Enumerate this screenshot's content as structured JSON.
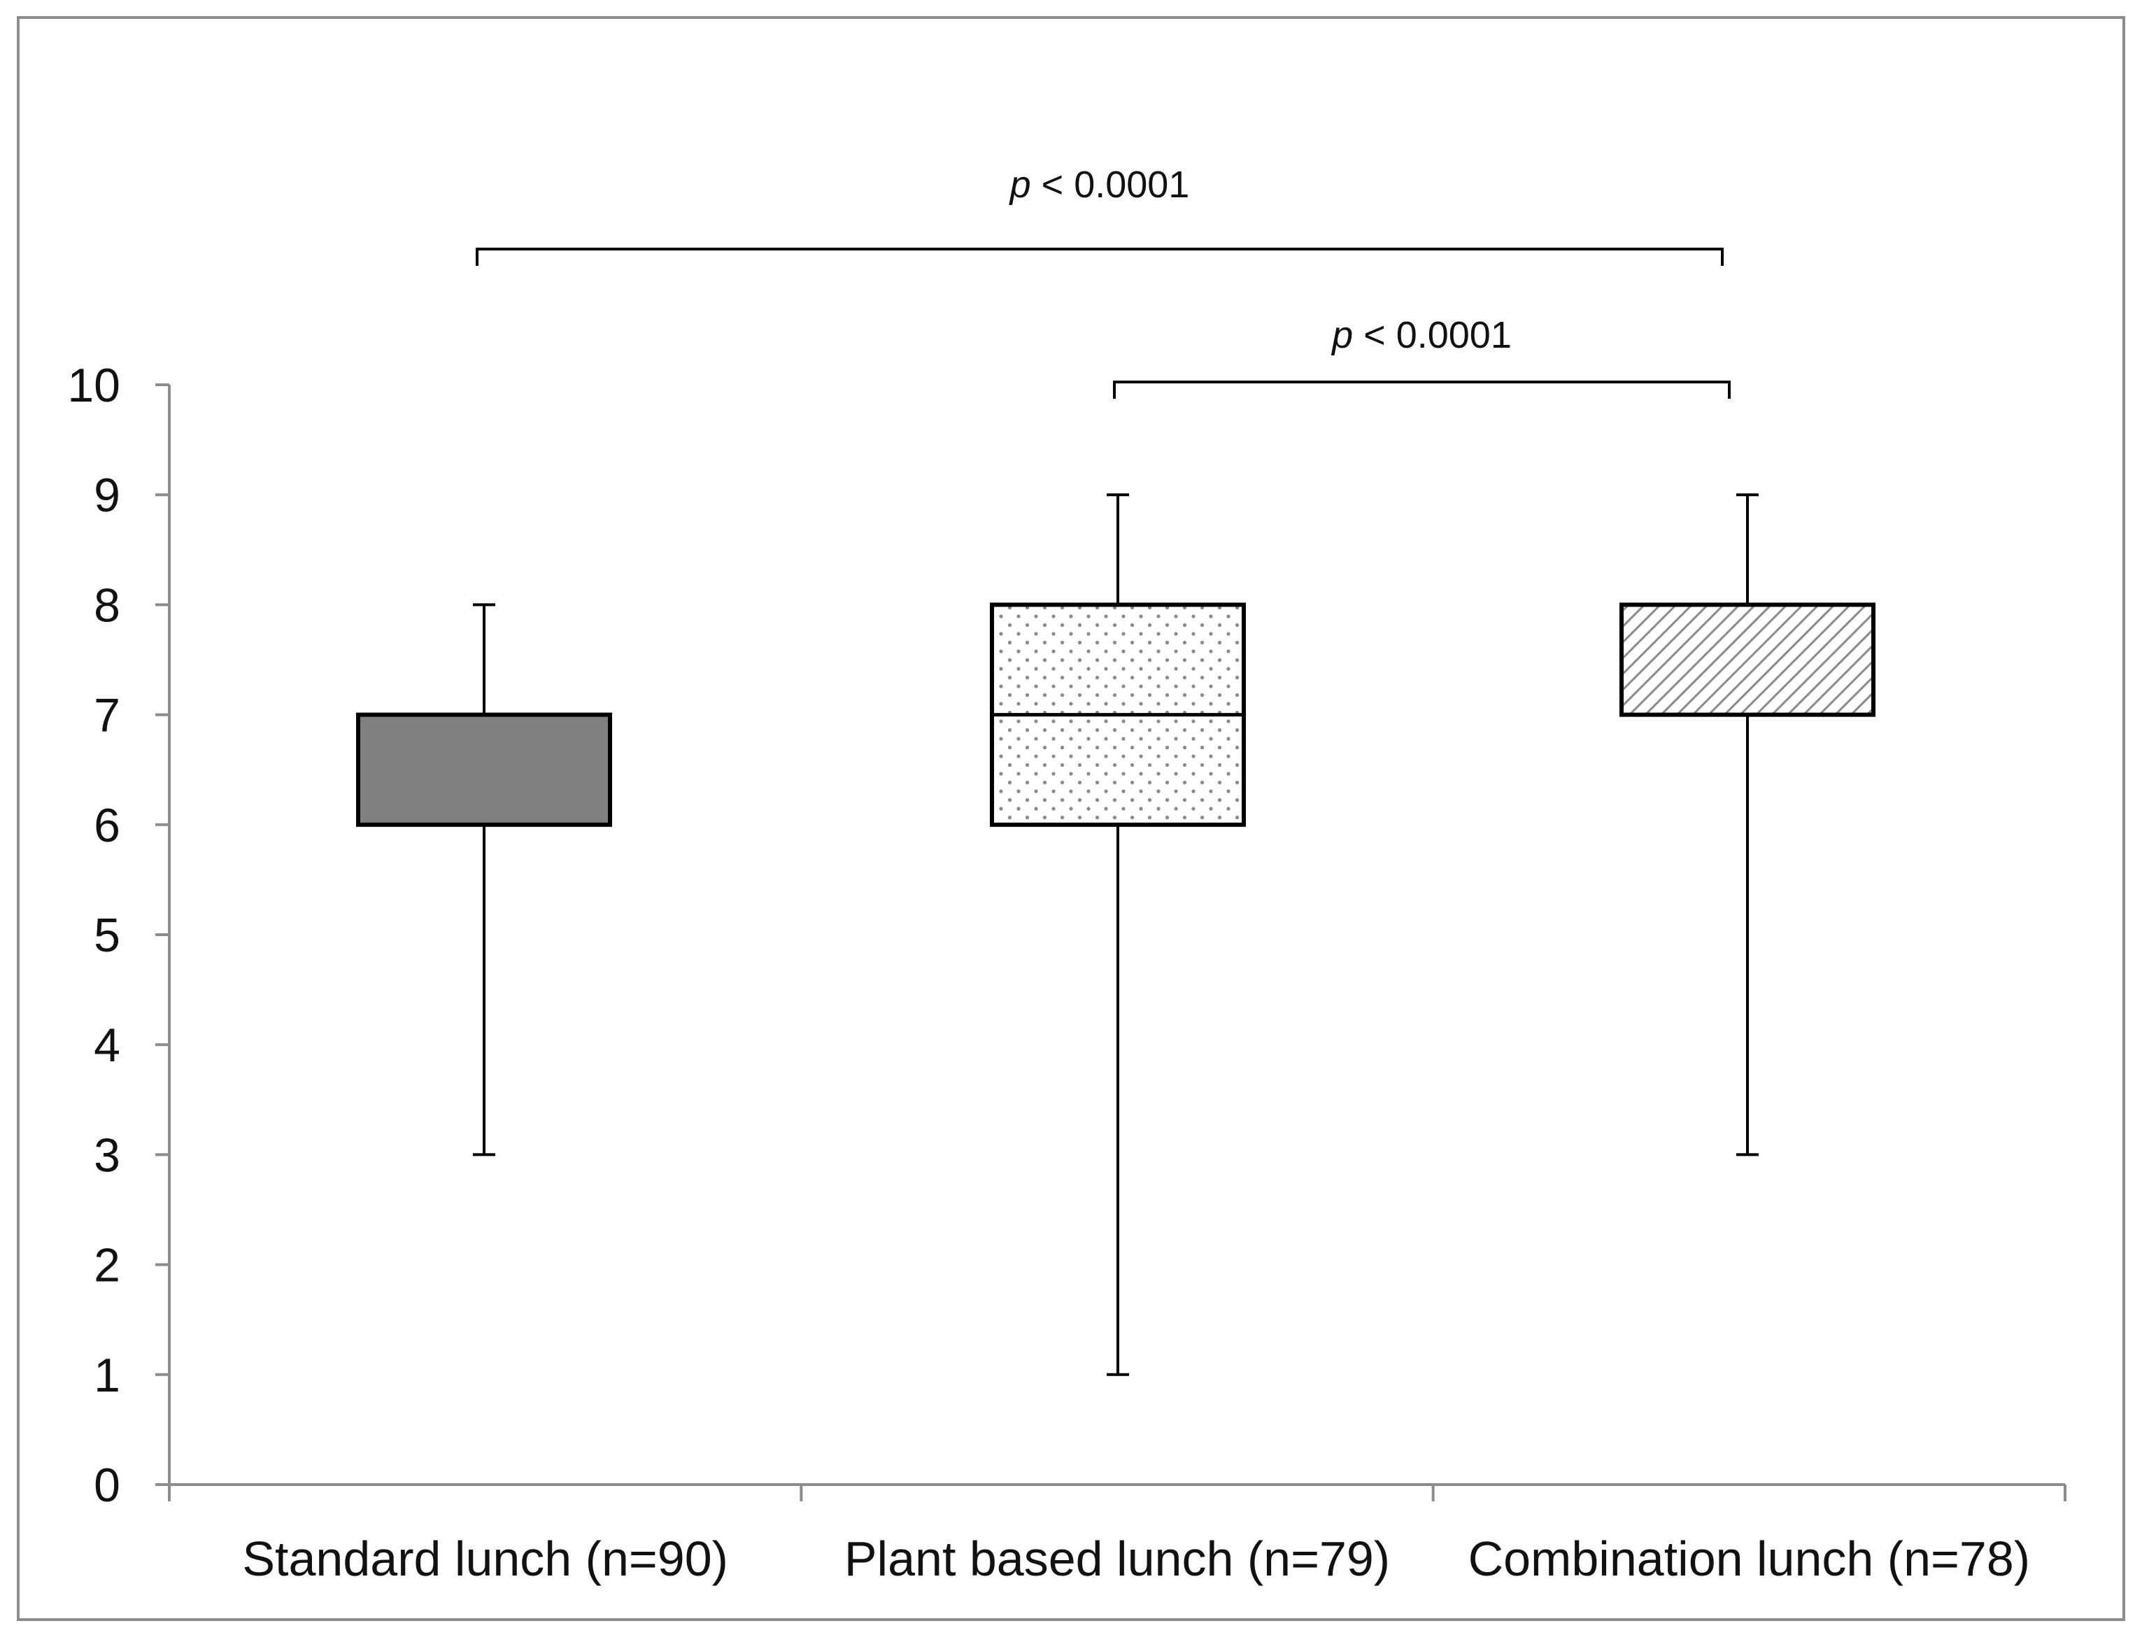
{
  "chart_data": {
    "type": "box",
    "title": "",
    "xlabel": "",
    "ylabel": "",
    "ylim": [
      0,
      10
    ],
    "yticks": [
      0,
      1,
      2,
      3,
      4,
      5,
      6,
      7,
      8,
      9,
      10
    ],
    "ytick_labels": [
      "0",
      "1",
      "2",
      "3",
      "4",
      "5",
      "6",
      "7",
      "8",
      "9",
      "10"
    ],
    "grid": false,
    "legend": "none",
    "categories": [
      "Standard lunch (n=90)",
      "Plant based lunch (n=79)",
      "Combination lunch (n=78)"
    ],
    "boxes": [
      {
        "category": "Standard lunch (n=90)",
        "min": 3,
        "q1": 6,
        "median": 7,
        "q3": 7,
        "max": 8,
        "fill": "solid",
        "color": "#808080"
      },
      {
        "category": "Plant based lunch (n=79)",
        "min": 1,
        "q1": 6,
        "median": 7,
        "q3": 8,
        "max": 9,
        "fill": "dotted",
        "color": "#8a8a8a"
      },
      {
        "category": "Combination lunch (n=78)",
        "min": 3,
        "q1": 7,
        "median": 8,
        "q3": 8,
        "max": 9,
        "fill": "hatched",
        "color": "#8a8a8a"
      }
    ],
    "annotations": [
      {
        "from": 0,
        "to": 2,
        "p_symbol": "p",
        "p_text": " < 0.0001"
      },
      {
        "from": 1,
        "to": 2,
        "p_symbol": "p",
        "p_text": " < 0.0001"
      }
    ],
    "colors": {
      "axis": "#8c8c8c",
      "frame": "#8c8c8c",
      "line": "#000000"
    }
  }
}
